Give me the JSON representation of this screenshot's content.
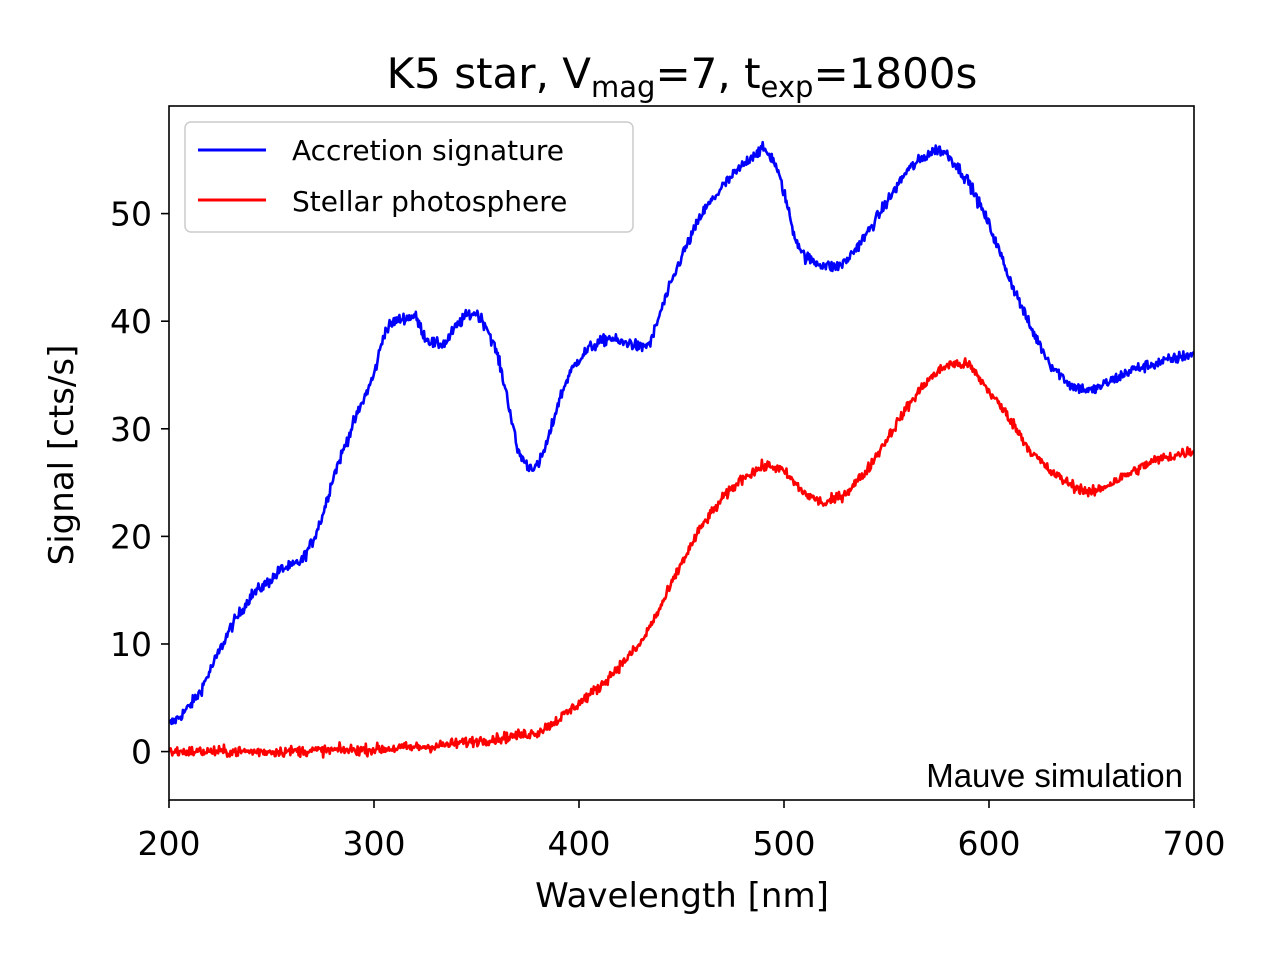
{
  "chart_data": {
    "type": "line",
    "title": {
      "star": "K5 star, ",
      "v": "V",
      "v_sub": "mag",
      "v_eq": "=7, ",
      "t": "t",
      "t_sub": "exp",
      "t_eq": "=1800s"
    },
    "xlabel": "Wavelength [nm]",
    "ylabel": "Signal [cts/s]",
    "xlim": [
      200,
      700
    ],
    "ylim": [
      -4.5,
      60
    ],
    "xticks": [
      200,
      300,
      400,
      500,
      600,
      700
    ],
    "yticks": [
      0,
      10,
      20,
      30,
      40,
      50
    ],
    "grid": false,
    "legend_position": "top-left",
    "annotation": "Mauve simulation",
    "series": [
      {
        "name": "Accretion signature",
        "color": "#0000ff",
        "noise": 0.55,
        "x": [
          200,
          205,
          210,
          215,
          220,
          225,
          230,
          240,
          250,
          255,
          260,
          265,
          270,
          275,
          280,
          290,
          300,
          305,
          310,
          315,
          320,
          325,
          330,
          335,
          340,
          345,
          350,
          355,
          360,
          365,
          370,
          375,
          380,
          385,
          390,
          395,
          400,
          405,
          410,
          415,
          420,
          425,
          430,
          435,
          440,
          450,
          460,
          470,
          480,
          485,
          490,
          495,
          500,
          505,
          510,
          515,
          520,
          525,
          530,
          540,
          550,
          560,
          570,
          575,
          580,
          590,
          600,
          610,
          620,
          630,
          640,
          650,
          660,
          670,
          680,
          690,
          700
        ],
        "y": [
          2.5,
          3.2,
          4.2,
          5.5,
          7.5,
          9.5,
          11.5,
          14.5,
          16.0,
          17.0,
          17.2,
          17.8,
          19.5,
          22.0,
          25.5,
          30.5,
          35.0,
          39.0,
          40.0,
          40.3,
          40.5,
          38.5,
          37.8,
          38.0,
          39.5,
          40.5,
          40.8,
          39.5,
          37.0,
          33.0,
          28.0,
          26.5,
          26.5,
          29.0,
          32.5,
          35.0,
          36.5,
          37.5,
          38.0,
          38.5,
          38.0,
          38.0,
          37.5,
          38.0,
          41.0,
          46.0,
          50.0,
          52.5,
          54.5,
          55.5,
          56.0,
          55.0,
          52.0,
          48.0,
          46.0,
          45.5,
          45.2,
          45.0,
          45.5,
          48.0,
          51.0,
          54.0,
          55.5,
          56.0,
          55.5,
          53.0,
          49.0,
          44.0,
          39.5,
          36.0,
          34.0,
          33.5,
          34.5,
          35.5,
          36.0,
          36.5,
          37.0
        ]
      },
      {
        "name": "Stellar photosphere",
        "color": "#ff0000",
        "noise": 0.5,
        "x": [
          200,
          250,
          300,
          330,
          350,
          360,
          370,
          380,
          390,
          400,
          410,
          420,
          430,
          440,
          450,
          460,
          470,
          480,
          490,
          495,
          500,
          510,
          520,
          530,
          540,
          550,
          560,
          570,
          580,
          590,
          600,
          610,
          620,
          630,
          640,
          650,
          660,
          670,
          680,
          690,
          700
        ],
        "y": [
          0.0,
          0.0,
          0.2,
          0.5,
          1.0,
          1.2,
          1.5,
          1.8,
          3.0,
          4.5,
          6.0,
          8.0,
          10.0,
          13.5,
          17.5,
          21.0,
          23.5,
          25.5,
          26.5,
          26.5,
          26.0,
          24.0,
          23.0,
          24.0,
          26.0,
          29.0,
          32.0,
          34.5,
          36.0,
          36.0,
          33.5,
          31.0,
          28.0,
          26.0,
          24.8,
          24.0,
          25.0,
          26.0,
          27.0,
          27.5,
          28.0
        ]
      }
    ]
  }
}
